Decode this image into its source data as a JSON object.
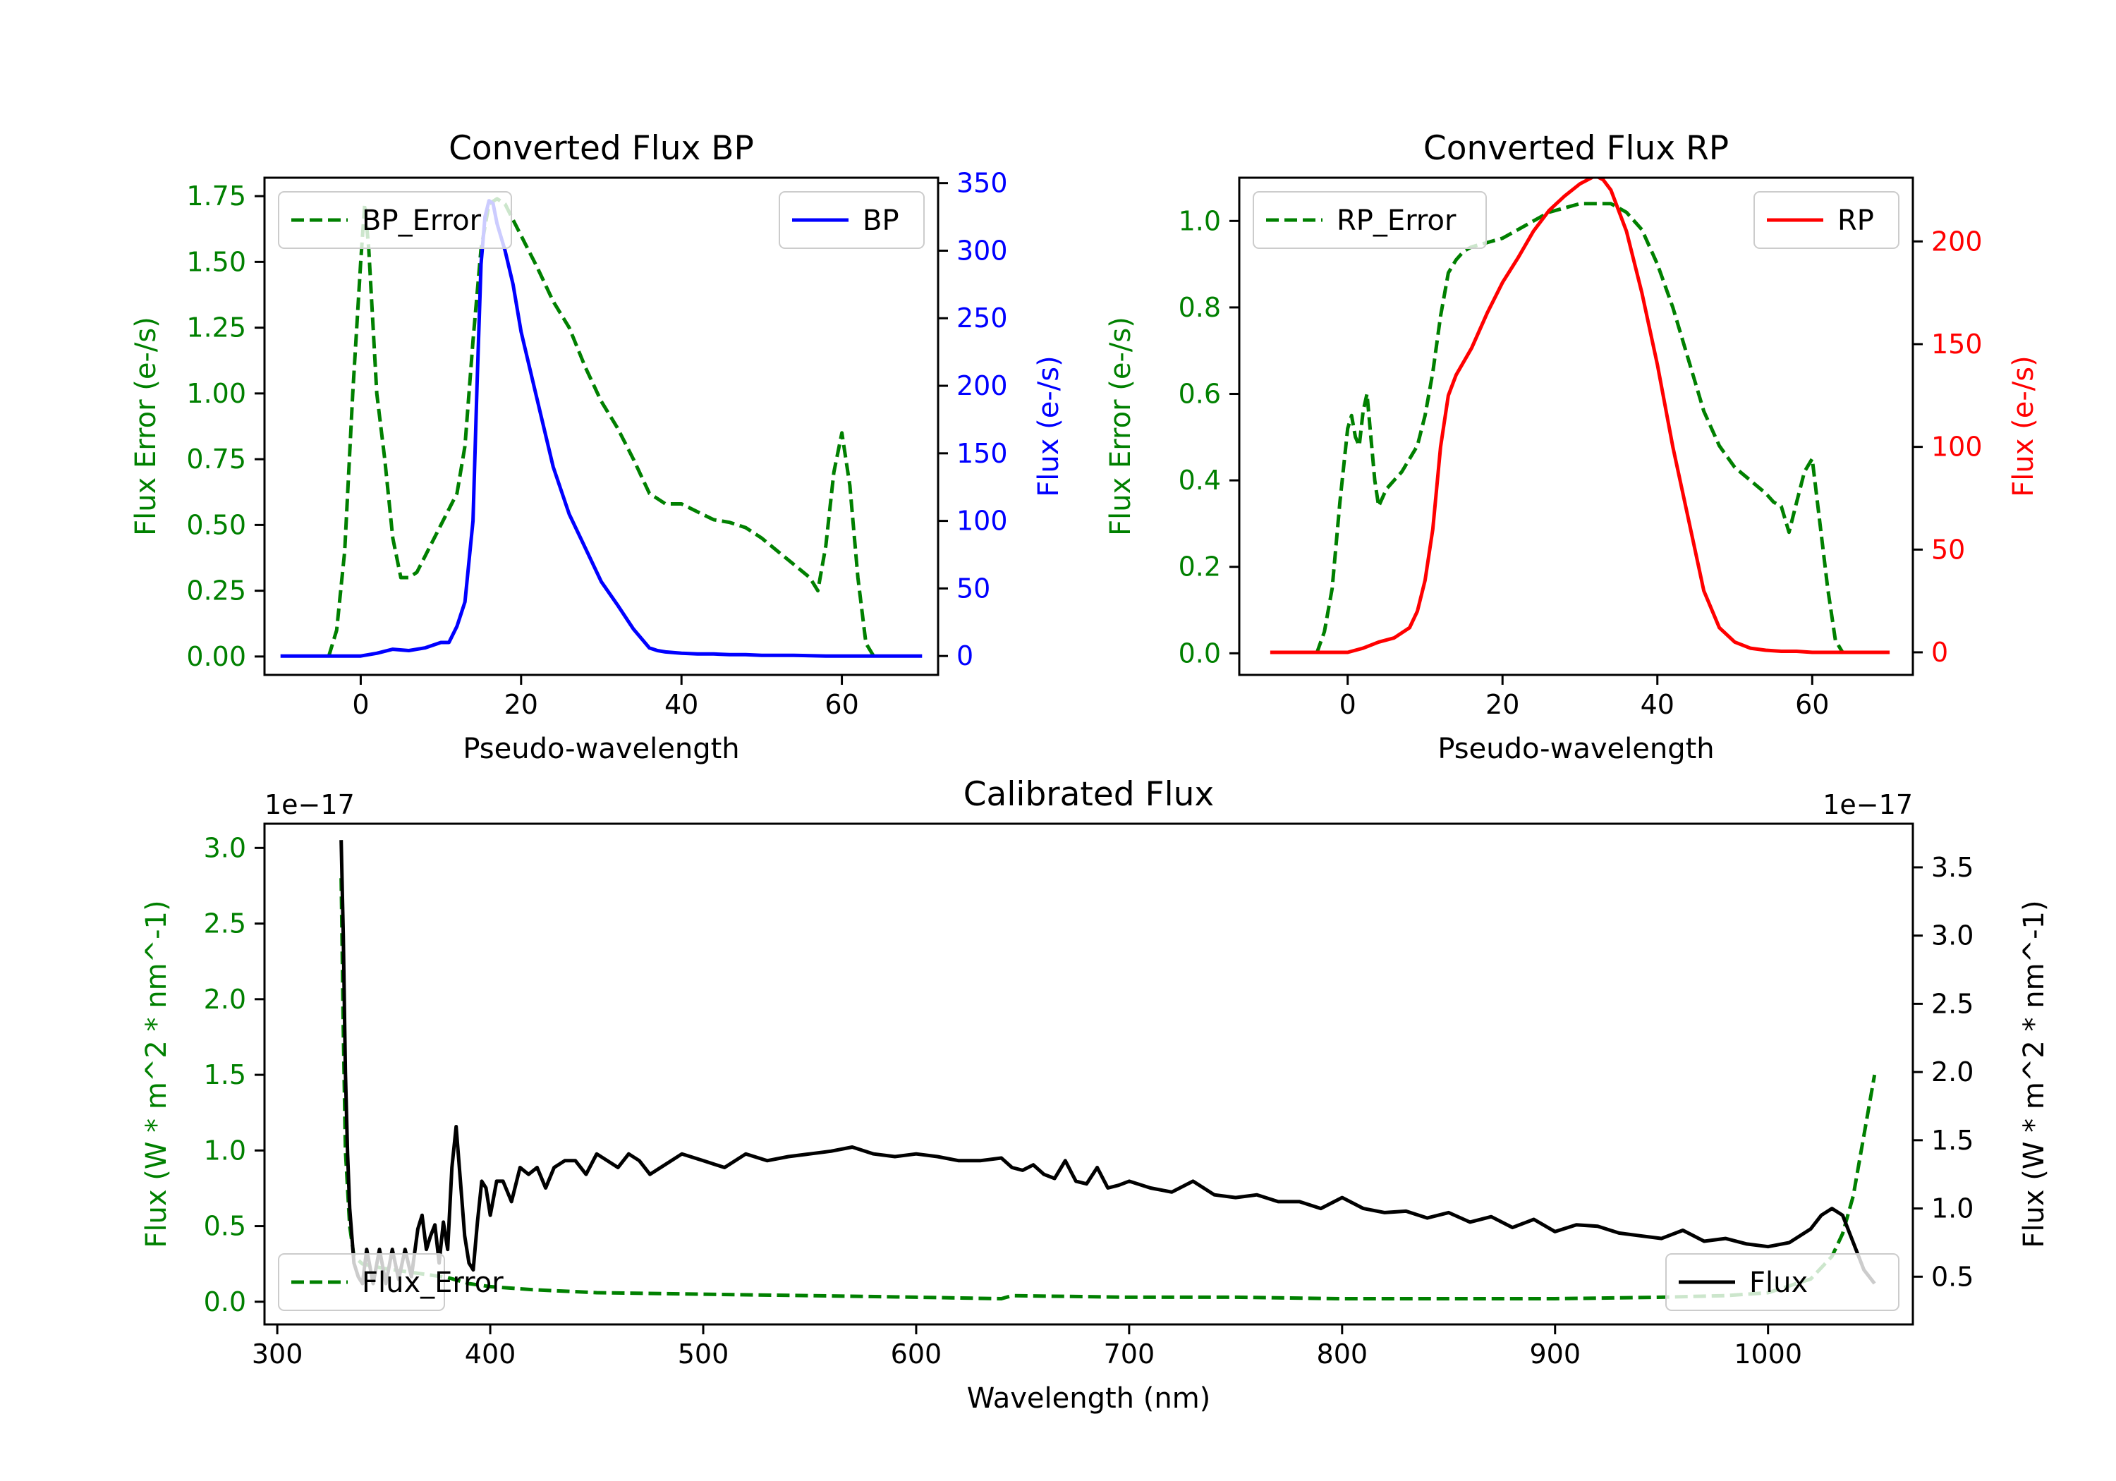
{
  "chart_data": [
    {
      "type": "line",
      "title": "Converted Flux BP",
      "xlabel": "Pseudo-wavelength",
      "xlim": [
        -12,
        72
      ],
      "x_ticks": [
        0,
        20,
        40,
        60
      ],
      "left_axis": {
        "label": "Flux Error (e-/s)",
        "color": "#008000",
        "ylim": [
          -0.07,
          1.82
        ],
        "ticks": [
          0.0,
          0.25,
          0.5,
          0.75,
          1.0,
          1.25,
          1.5,
          1.75
        ],
        "tick_labels": [
          "0.00",
          "0.25",
          "0.50",
          "0.75",
          "1.00",
          "1.25",
          "1.50",
          "1.75"
        ]
      },
      "right_axis": {
        "label": "Flux (e-/s)",
        "color": "#0000ff",
        "ylim": [
          -14,
          354
        ],
        "ticks": [
          0,
          50,
          100,
          150,
          200,
          250,
          300,
          350
        ],
        "tick_labels": [
          "0",
          "50",
          "100",
          "150",
          "200",
          "250",
          "300",
          "350"
        ]
      },
      "series": [
        {
          "name": "BP_Error",
          "axis": "left",
          "color": "#008000",
          "dash": true,
          "x": [
            -4,
            -3,
            -2,
            -1,
            0,
            0.5,
            1,
            2,
            3,
            4,
            5,
            6,
            7,
            8,
            10,
            12,
            13,
            14,
            15,
            16,
            17,
            18,
            19,
            20,
            22,
            24,
            26,
            28,
            30,
            32,
            34,
            36,
            38,
            40,
            42,
            44,
            46,
            48,
            50,
            52,
            54,
            56,
            57,
            58,
            59,
            60,
            61,
            62,
            63,
            64
          ],
          "y": [
            0.0,
            0.1,
            0.4,
            1.0,
            1.5,
            1.72,
            1.55,
            1.0,
            0.75,
            0.45,
            0.3,
            0.3,
            0.32,
            0.38,
            0.5,
            0.62,
            0.8,
            1.2,
            1.55,
            1.72,
            1.74,
            1.72,
            1.66,
            1.6,
            1.48,
            1.35,
            1.25,
            1.1,
            0.97,
            0.87,
            0.75,
            0.62,
            0.58,
            0.58,
            0.55,
            0.52,
            0.51,
            0.49,
            0.45,
            0.4,
            0.35,
            0.3,
            0.25,
            0.42,
            0.7,
            0.85,
            0.65,
            0.3,
            0.05,
            0.0
          ]
        },
        {
          "name": "BP",
          "axis": "right",
          "color": "#0000ff",
          "dash": false,
          "x": [
            -10,
            -6,
            -4,
            -2,
            0,
            2,
            4,
            6,
            8,
            10,
            11,
            12,
            13,
            14,
            14.5,
            15,
            15.5,
            16,
            16.5,
            17,
            18,
            19,
            20,
            22,
            24,
            26,
            28,
            30,
            32,
            34,
            36,
            37,
            38,
            40,
            42,
            44,
            46,
            48,
            50,
            54,
            58,
            62,
            66,
            70
          ],
          "y": [
            0,
            0,
            0,
            0,
            0,
            2,
            5,
            4,
            6,
            10,
            10,
            22,
            40,
            100,
            200,
            290,
            325,
            337,
            335,
            320,
            300,
            275,
            240,
            190,
            140,
            105,
            80,
            55,
            38,
            20,
            6,
            4,
            3,
            2,
            1.5,
            1.5,
            1,
            1,
            0.5,
            0.5,
            0,
            0,
            0,
            0
          ]
        }
      ],
      "legend_left": "top-left",
      "legend_right": "top-right"
    },
    {
      "type": "line",
      "title": "Converted Flux RP",
      "xlabel": "Pseudo-wavelength",
      "xlim": [
        -14,
        73
      ],
      "x_ticks": [
        0,
        20,
        40,
        60
      ],
      "left_axis": {
        "label": "Flux Error (e-/s)",
        "color": "#008000",
        "ylim": [
          -0.05,
          1.1
        ],
        "ticks": [
          0.0,
          0.2,
          0.4,
          0.6,
          0.8,
          1.0
        ],
        "tick_labels": [
          "0.0",
          "0.2",
          "0.4",
          "0.6",
          "0.8",
          "1.0"
        ]
      },
      "right_axis": {
        "label": "Flux (e-/s)",
        "color": "#ff0000",
        "ylim": [
          -11,
          231
        ],
        "ticks": [
          0,
          50,
          100,
          150,
          200
        ],
        "tick_labels": [
          "0",
          "50",
          "100",
          "150",
          "200"
        ]
      },
      "series": [
        {
          "name": "RP_Error",
          "axis": "left",
          "color": "#008000",
          "dash": true,
          "x": [
            -4,
            -3,
            -2,
            -1,
            0,
            0.5,
            1,
            1.5,
            2,
            2.5,
            3,
            3.5,
            4,
            5,
            6,
            7,
            8,
            9,
            10,
            11,
            12,
            13,
            14,
            15,
            16,
            18,
            20,
            22,
            24,
            26,
            28,
            30,
            32,
            34,
            36,
            38,
            40,
            42,
            44,
            46,
            48,
            50,
            52,
            54,
            55,
            56,
            57,
            58,
            59,
            60,
            61,
            62,
            63,
            64
          ],
          "y": [
            0.0,
            0.05,
            0.15,
            0.35,
            0.52,
            0.55,
            0.5,
            0.48,
            0.56,
            0.6,
            0.5,
            0.4,
            0.34,
            0.38,
            0.4,
            0.42,
            0.45,
            0.48,
            0.55,
            0.65,
            0.78,
            0.88,
            0.91,
            0.93,
            0.94,
            0.95,
            0.96,
            0.98,
            1.0,
            1.02,
            1.03,
            1.04,
            1.04,
            1.04,
            1.02,
            0.98,
            0.9,
            0.8,
            0.68,
            0.56,
            0.48,
            0.43,
            0.4,
            0.37,
            0.35,
            0.34,
            0.28,
            0.35,
            0.42,
            0.45,
            0.3,
            0.15,
            0.03,
            0.0
          ]
        },
        {
          "name": "RP",
          "axis": "right",
          "color": "#ff0000",
          "dash": false,
          "x": [
            -10,
            -6,
            -4,
            -2,
            0,
            2,
            4,
            6,
            8,
            9,
            10,
            11,
            12,
            13,
            14,
            16,
            18,
            20,
            22,
            24,
            26,
            28,
            30,
            31,
            32,
            33,
            34,
            36,
            38,
            40,
            42,
            44,
            46,
            48,
            50,
            52,
            54,
            56,
            58,
            60,
            62,
            65,
            70
          ],
          "y": [
            0,
            0,
            0,
            0,
            0,
            2,
            5,
            7,
            12,
            20,
            35,
            60,
            100,
            125,
            135,
            148,
            165,
            180,
            192,
            205,
            215,
            222,
            228,
            230,
            232,
            230,
            225,
            205,
            175,
            140,
            100,
            65,
            30,
            12,
            5,
            2,
            1,
            0.5,
            0.5,
            0,
            0,
            0,
            0
          ]
        }
      ],
      "legend_left": "top-left",
      "legend_right": "top-right"
    },
    {
      "type": "line",
      "title": "Calibrated Flux",
      "xlabel": "Wavelength (nm)",
      "xlim": [
        294,
        1068
      ],
      "x_ticks": [
        300,
        400,
        500,
        600,
        700,
        800,
        900,
        1000
      ],
      "left_axis": {
        "label": "Flux (W * m^2 * nm^-1)",
        "color": "#008000",
        "ylim": [
          -0.15,
          3.16
        ],
        "offset_text": "1e−17",
        "ticks": [
          0.0,
          0.5,
          1.0,
          1.5,
          2.0,
          2.5,
          3.0
        ],
        "tick_labels": [
          "0.0",
          "0.5",
          "1.0",
          "1.5",
          "2.0",
          "2.5",
          "3.0"
        ]
      },
      "right_axis": {
        "label": "Flux (W * m^2 * nm^-1)",
        "color": "#000000",
        "ylim": [
          0.15,
          3.82
        ],
        "offset_text": "1e−17",
        "ticks": [
          0.5,
          1.0,
          1.5,
          2.0,
          2.5,
          3.0,
          3.5
        ],
        "tick_labels": [
          "0.5",
          "1.0",
          "1.5",
          "2.0",
          "2.5",
          "3.0",
          "3.5"
        ]
      },
      "series": [
        {
          "name": "Flux_Error",
          "axis": "left",
          "color": "#008000",
          "dash": true,
          "x": [
            330,
            331,
            332,
            334,
            336,
            340,
            350,
            360,
            370,
            380,
            390,
            400,
            420,
            450,
            500,
            550,
            600,
            640,
            645,
            700,
            750,
            800,
            850,
            900,
            950,
            980,
            1000,
            1020,
            1030,
            1035,
            1040,
            1045,
            1050
          ],
          "y": [
            2.8,
            1.8,
            1.0,
            0.5,
            0.3,
            0.25,
            0.22,
            0.2,
            0.18,
            0.16,
            0.12,
            0.1,
            0.08,
            0.06,
            0.05,
            0.04,
            0.03,
            0.02,
            0.04,
            0.03,
            0.03,
            0.02,
            0.02,
            0.02,
            0.03,
            0.04,
            0.06,
            0.15,
            0.3,
            0.45,
            0.7,
            1.1,
            1.5
          ]
        },
        {
          "name": "Flux",
          "axis": "right",
          "color": "#000000",
          "dash": false,
          "x": [
            330,
            331,
            332,
            333,
            334,
            335,
            336,
            338,
            340,
            342,
            345,
            348,
            351,
            354,
            357,
            360,
            363,
            366,
            368,
            370,
            372,
            374,
            376,
            378,
            380,
            382,
            384,
            386,
            388,
            390,
            392,
            394,
            396,
            398,
            400,
            403,
            406,
            410,
            414,
            418,
            422,
            426,
            430,
            435,
            440,
            445,
            450,
            455,
            460,
            465,
            470,
            475,
            480,
            490,
            500,
            510,
            520,
            530,
            540,
            550,
            560,
            570,
            580,
            590,
            600,
            610,
            620,
            630,
            640,
            645,
            650,
            655,
            660,
            665,
            670,
            675,
            680,
            685,
            690,
            695,
            700,
            710,
            720,
            730,
            740,
            750,
            760,
            770,
            780,
            790,
            800,
            810,
            820,
            830,
            840,
            850,
            860,
            870,
            880,
            890,
            900,
            910,
            920,
            930,
            940,
            950,
            960,
            970,
            980,
            990,
            1000,
            1010,
            1020,
            1025,
            1030,
            1035,
            1040,
            1045,
            1050
          ],
          "y": [
            3.7,
            3.0,
            2.0,
            1.4,
            1.0,
            0.8,
            0.6,
            0.5,
            0.45,
            0.7,
            0.45,
            0.7,
            0.45,
            0.7,
            0.48,
            0.7,
            0.5,
            0.85,
            0.95,
            0.7,
            0.8,
            0.88,
            0.6,
            0.9,
            0.7,
            1.3,
            1.6,
            1.2,
            0.8,
            0.6,
            0.55,
            0.9,
            1.2,
            1.15,
            0.95,
            1.2,
            1.2,
            1.05,
            1.3,
            1.25,
            1.3,
            1.15,
            1.3,
            1.35,
            1.35,
            1.25,
            1.4,
            1.35,
            1.3,
            1.4,
            1.35,
            1.25,
            1.3,
            1.4,
            1.35,
            1.3,
            1.4,
            1.35,
            1.38,
            1.4,
            1.42,
            1.45,
            1.4,
            1.38,
            1.4,
            1.38,
            1.35,
            1.35,
            1.37,
            1.3,
            1.28,
            1.32,
            1.25,
            1.22,
            1.35,
            1.2,
            1.18,
            1.3,
            1.15,
            1.17,
            1.2,
            1.15,
            1.12,
            1.2,
            1.1,
            1.08,
            1.1,
            1.05,
            1.05,
            1.0,
            1.08,
            1.0,
            0.97,
            0.98,
            0.93,
            0.97,
            0.9,
            0.94,
            0.86,
            0.92,
            0.83,
            0.88,
            0.87,
            0.82,
            0.8,
            0.78,
            0.84,
            0.76,
            0.78,
            0.74,
            0.72,
            0.75,
            0.85,
            0.95,
            1.0,
            0.95,
            0.75,
            0.55,
            0.45
          ]
        }
      ],
      "legend_left": "bottom-left",
      "legend_right": "bottom-right"
    }
  ]
}
